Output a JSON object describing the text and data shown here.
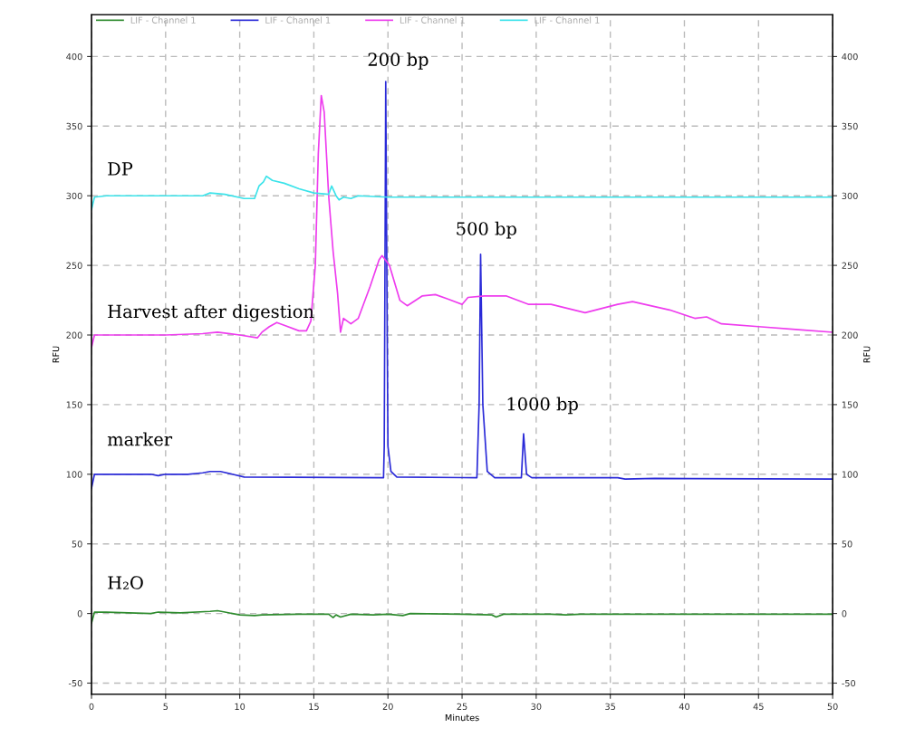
{
  "chart_data": {
    "type": "line",
    "xlabel": "Minutes",
    "ylabel": "RFU",
    "y2label": "RFU",
    "xlim": [
      0,
      50
    ],
    "xticks": [
      0,
      5,
      10,
      15,
      20,
      25,
      30,
      35,
      40,
      45,
      50
    ],
    "ylim": [
      -58,
      430
    ],
    "yticks": [
      -50,
      0,
      50,
      100,
      150,
      200,
      250,
      300,
      350,
      400
    ],
    "y2lim": [
      -58,
      430
    ],
    "y2ticks": [
      -50,
      0,
      50,
      100,
      150,
      200,
      250,
      300,
      350,
      400
    ],
    "grid": true,
    "legend": "top",
    "line_style": "solid",
    "marker": "none",
    "series": [
      {
        "name": "LIF - Channel 1",
        "color": "#2e8b2e",
        "x": [
          0,
          0.2,
          1,
          4,
          4.5,
          6,
          8,
          8.5,
          9,
          10,
          11,
          11.5,
          14,
          16,
          16.3,
          16.5,
          16.8,
          17.5,
          19,
          20,
          21,
          21.5,
          25,
          27,
          27.3,
          27.8,
          31,
          32,
          33,
          50
        ],
        "values": [
          -7,
          1,
          1,
          0,
          1,
          0.5,
          1.5,
          2,
          1,
          -1,
          -1.5,
          -1,
          -0.5,
          -0.5,
          -3,
          -1,
          -2.5,
          -0.5,
          -1,
          -0.5,
          -1.5,
          0,
          -0.5,
          -1,
          -2.5,
          -0.5,
          -0.5,
          -1,
          -0.5,
          -0.5
        ]
      },
      {
        "name": "LIF - Channel 1",
        "color": "#2a2ad8",
        "x": [
          0,
          0.2,
          4,
          4.5,
          5,
          6.5,
          7.5,
          8,
          8.7,
          9.5,
          10.3,
          19.7,
          19.75,
          19.85,
          19.95,
          20,
          20.2,
          20.6,
          26,
          26.15,
          26.25,
          26.4,
          26.7,
          27.2,
          29,
          29.15,
          29.35,
          29.7,
          35.5,
          36,
          38,
          50
        ],
        "values": [
          90,
          100,
          100,
          99,
          100,
          100,
          101,
          102,
          102,
          100,
          98,
          97.5,
          120,
          382,
          200,
          120,
          102,
          98,
          97.5,
          150,
          258,
          150,
          102,
          97.5,
          97.5,
          129,
          100,
          97.5,
          97.5,
          96.5,
          97,
          96.5
        ]
      },
      {
        "name": "LIF - Channel 1",
        "color": "#ee3cee",
        "x": [
          0,
          0.2,
          5,
          7.5,
          8.5,
          10,
          11.2,
          11.5,
          12,
          12.5,
          13,
          14,
          14.5,
          14.8,
          15.1,
          15.3,
          15.5,
          15.7,
          16,
          16.3,
          16.6,
          16.8,
          17,
          17.5,
          18,
          18.8,
          19.4,
          19.6,
          20.1,
          20.8,
          21.3,
          22.3,
          23.2,
          24,
          25,
          25.4,
          26.5,
          28,
          29.5,
          31,
          33.3,
          35.5,
          36.5,
          39,
          40.7,
          41.5,
          42.5,
          45,
          47.5,
          50
        ],
        "values": [
          191,
          200,
          200,
          201,
          202,
          200,
          198,
          202,
          206,
          209,
          207,
          203,
          203,
          210,
          250,
          330,
          372,
          360,
          300,
          260,
          230,
          202,
          212,
          208,
          212,
          235,
          254,
          257,
          250,
          225,
          221,
          228,
          229,
          226,
          222,
          227,
          228,
          228,
          222,
          222,
          216,
          222,
          224,
          218,
          212,
          213,
          208,
          206,
          204,
          202
        ]
      },
      {
        "name": "LIF - Channel 1",
        "color": "#3be3ea",
        "x": [
          0,
          0.2,
          1,
          7.5,
          8,
          9,
          10.3,
          11,
          11.3,
          11.6,
          11.8,
          12.2,
          13,
          14,
          15,
          16,
          16.2,
          16.5,
          16.7,
          17,
          17.5,
          18,
          20,
          30,
          50
        ],
        "values": [
          290,
          299,
          300,
          300,
          302,
          301,
          298,
          298,
          307,
          310,
          314,
          311,
          309,
          305,
          302,
          301,
          307,
          300,
          297,
          299,
          298,
          300,
          299,
          299,
          299
        ]
      }
    ],
    "annotations": [
      "200 bp",
      "500 bp",
      "1000 bp",
      "DP",
      "Harvest after digestion",
      "marker",
      "H₂O"
    ]
  }
}
